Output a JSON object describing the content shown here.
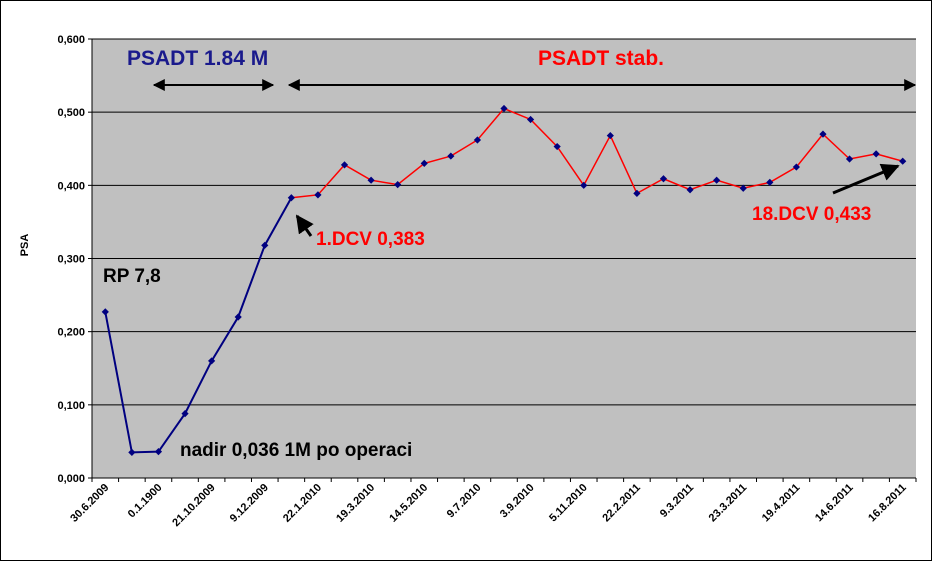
{
  "chart_data": {
    "type": "line",
    "xlabel": "",
    "ylabel": "PSA",
    "ylim": [
      0,
      0.6
    ],
    "y_ticks": [
      "0,000",
      "0,100",
      "0,200",
      "0,300",
      "0,400",
      "0,500",
      "0,600"
    ],
    "x_tick_labels": [
      "30.6.2009",
      "0.1.1900",
      "21.10.2009",
      "9.12.2009",
      "22.1.2010",
      "19.3.2010",
      "14.5.2010",
      "9.7.2010",
      "3.9.2010",
      "5.11.2010",
      "22.2.2011",
      "9.3.2011",
      "23.3.2011",
      "19.4.2011",
      "14.6.2011",
      "16.8.2011"
    ],
    "grid": true,
    "background_color": "#c0c0c0",
    "series": [
      {
        "color": "#000080",
        "values": [
          0.227,
          0.035,
          0.036,
          0.088,
          0.16,
          0.22,
          0.318,
          0.383
        ]
      },
      {
        "color": "#ff0000",
        "values": [
          0.383,
          0.387,
          0.428,
          0.407,
          0.401,
          0.43,
          0.44,
          0.462,
          0.505,
          0.49,
          0.453,
          0.4,
          0.468,
          0.389,
          0.409,
          0.394,
          0.407,
          0.396,
          0.404,
          0.425,
          0.47,
          0.436,
          0.443,
          0.433
        ]
      }
    ],
    "marker_color": "#000080",
    "annotations": {
      "psadt_184": "PSADT 1.84 M",
      "psadt_stab": "PSADT stab.",
      "rp": "RP 7,8",
      "nadir": "nadir 0,036 1M po operaci",
      "dcv1": "1.DCV 0,383",
      "dcv18": "18.DCV 0,433"
    },
    "annotation_colors": {
      "psadt_184": "#1a1a8c",
      "psadt_stab": "#ff0000",
      "rp": "#000000",
      "nadir": "#000000",
      "dcv1": "#ff0000",
      "dcv18": "#ff0000"
    }
  }
}
